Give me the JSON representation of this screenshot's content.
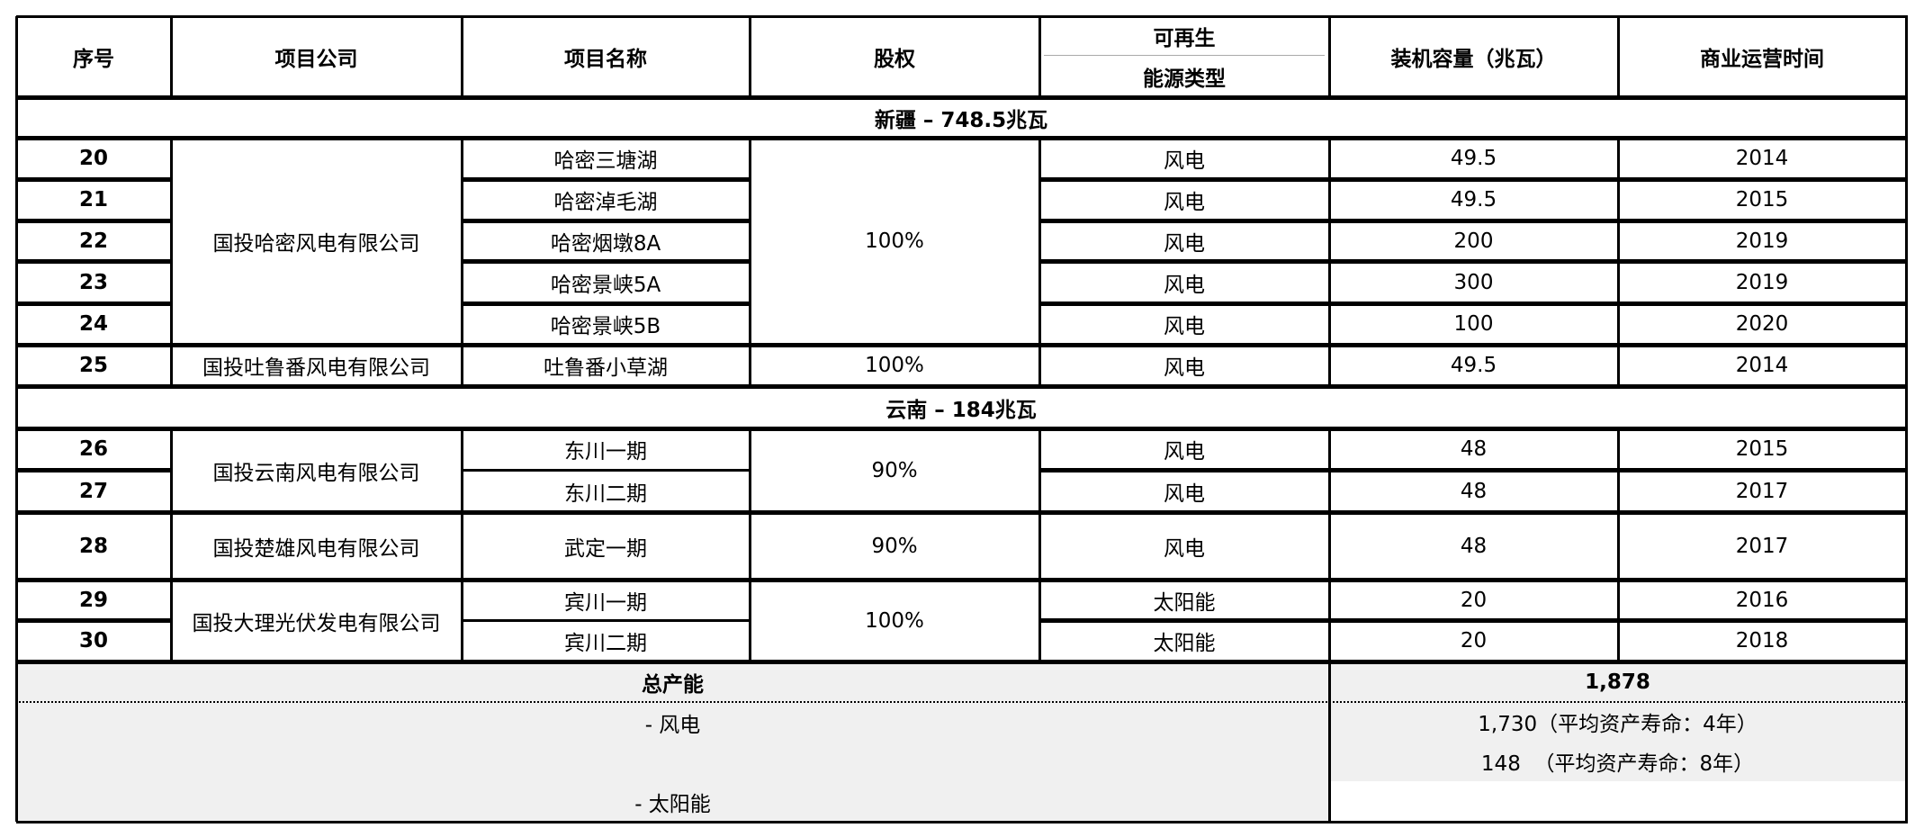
{
  "header": {
    "no": "序号",
    "company": "项目公司",
    "project": "项目名称",
    "equity": "股权",
    "type_top": "可再生",
    "type_bottom": "能源类型",
    "capacity": "装机容量（兆瓦）",
    "cod": "商业运营时间"
  },
  "regions": [
    {
      "label": "新疆 – 748.5兆瓦"
    },
    {
      "label": "云南 – 184兆瓦"
    }
  ],
  "companies": [
    "国投哈密风电有限公司",
    "国投吐鲁番风电有限公司",
    "国投云南风电有限公司",
    "国投楚雄风电有限公司",
    "国投大理光伏发电有限公司"
  ],
  "equity": [
    "100%",
    "100%",
    "90%",
    "90%",
    "100%"
  ],
  "rows": [
    {
      "no": "20",
      "project": "哈密三塘湖",
      "type": "风电",
      "capacity": "49.5",
      "year": "2014"
    },
    {
      "no": "21",
      "project": "哈密淖毛湖",
      "type": "风电",
      "capacity": "49.5",
      "year": "2015"
    },
    {
      "no": "22",
      "project": "哈密烟墩8A",
      "type": "风电",
      "capacity": "200",
      "year": "2019"
    },
    {
      "no": "23",
      "project": "哈密景峡5A",
      "type": "风电",
      "capacity": "300",
      "year": "2019"
    },
    {
      "no": "24",
      "project": "哈密景峡5B",
      "type": "风电",
      "capacity": "100",
      "year": "2020"
    },
    {
      "no": "25",
      "project": "吐鲁番小草湖",
      "type": "风电",
      "capacity": "49.5",
      "year": "2014"
    },
    {
      "no": "26",
      "project": "东川一期",
      "type": "风电",
      "capacity": "48",
      "year": "2015"
    },
    {
      "no": "27",
      "project": "东川二期",
      "type": "风电",
      "capacity": "48",
      "year": "2017"
    },
    {
      "no": "28",
      "project": "武定一期",
      "type": "风电",
      "capacity": "48",
      "year": "2017"
    },
    {
      "no": "29",
      "project": "宾川一期",
      "type": "太阳能",
      "capacity": "20",
      "year": "2016"
    },
    {
      "no": "30",
      "project": "宾川二期",
      "type": "太阳能",
      "capacity": "20",
      "year": "2018"
    }
  ],
  "total": {
    "label": "总产能",
    "value": "1,878",
    "wind_label": "- 风电",
    "solar_label": "- 太阳能",
    "wind_value": "1,730（平均资产寿命：4年）",
    "solar_value": "148  （平均资产寿命：8年）"
  }
}
